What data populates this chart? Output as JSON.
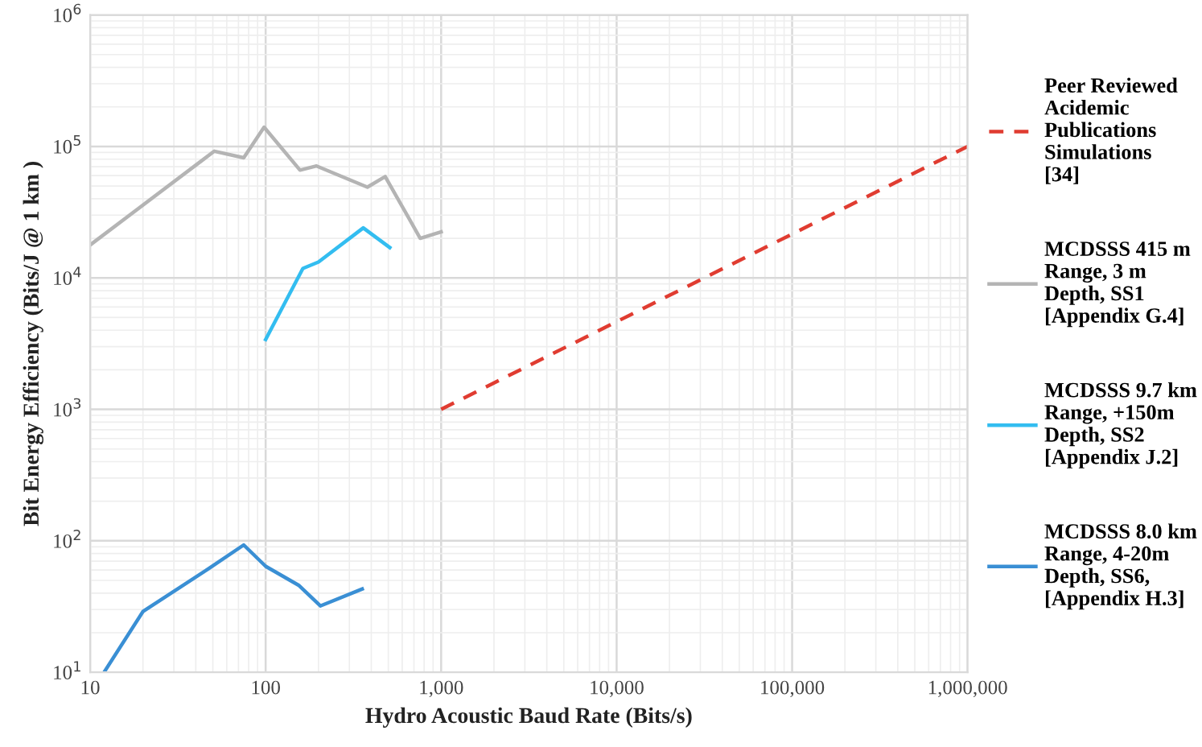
{
  "chart_data": {
    "type": "line",
    "xlabel": "Hydro Acoustic Baud Rate (Bits/s)",
    "ylabel": "Bit Energy Efficiency (Bits/J @ 1 km )",
    "log": "xy",
    "xlim": [
      10,
      1000000
    ],
    "xticks": [
      {
        "value": 10,
        "label": "10"
      },
      {
        "value": 100,
        "label": "100"
      },
      {
        "value": 1000,
        "label": "1,000"
      },
      {
        "value": 10000,
        "label": "10,000"
      },
      {
        "value": 100000,
        "label": "100,000"
      },
      {
        "value": 1000000,
        "label": "1,000,000"
      }
    ],
    "ylim": [
      10,
      1000000
    ],
    "yticks": [
      {
        "value": 10,
        "label": "10$^{1}$"
      },
      {
        "value": 100,
        "label": "10$^{2}$"
      },
      {
        "value": 1000,
        "label": "10$^{3}$"
      },
      {
        "value": 10000,
        "label": "10$^{4}$"
      },
      {
        "value": 100000,
        "label": "10$^{5}$"
      },
      {
        "value": 1000000,
        "label": "10$^{6}$"
      }
    ],
    "grid": true,
    "legend": "right",
    "series": [
      {
        "name": "Peer Reviewed\nAcidemic\nPublications\nSimulations\n[34]",
        "color": "#e03c31",
        "line_style": "dashed",
        "x": [
          1000,
          1000000
        ],
        "values": [
          1000,
          100000
        ]
      },
      {
        "name": "MCDSSS 415 m\nRange, 3 m\nDepth, SS1\n[Appendix G.4]",
        "color": "#b4b4b4",
        "x": [
          10,
          51,
          75,
          98,
          157,
          195,
          380,
          480,
          760,
          1000
        ],
        "values": [
          17800,
          92000,
          82000,
          140000,
          66000,
          71000,
          49000,
          59000,
          20000,
          22400
        ]
      },
      {
        "name": "MCDSSS 9.7 km\nRange, +150m\nDepth, SS2\n[Appendix J.2]",
        "color": "#33bdf0",
        "x": [
          100,
          163,
          200,
          360,
          510
        ],
        "values": [
          3400,
          11800,
          13200,
          24000,
          17000
        ]
      },
      {
        "name": "MCDSSS 8.0 km\nRange, 4-20m\nDepth, SS6,\n[Appendix H.3]",
        "color": "#3a8fd4",
        "x": [
          12,
          20,
          47,
          75,
          100,
          154,
          205,
          355
        ],
        "values": [
          10,
          29,
          61,
          93,
          64,
          46,
          32,
          43
        ]
      }
    ]
  }
}
